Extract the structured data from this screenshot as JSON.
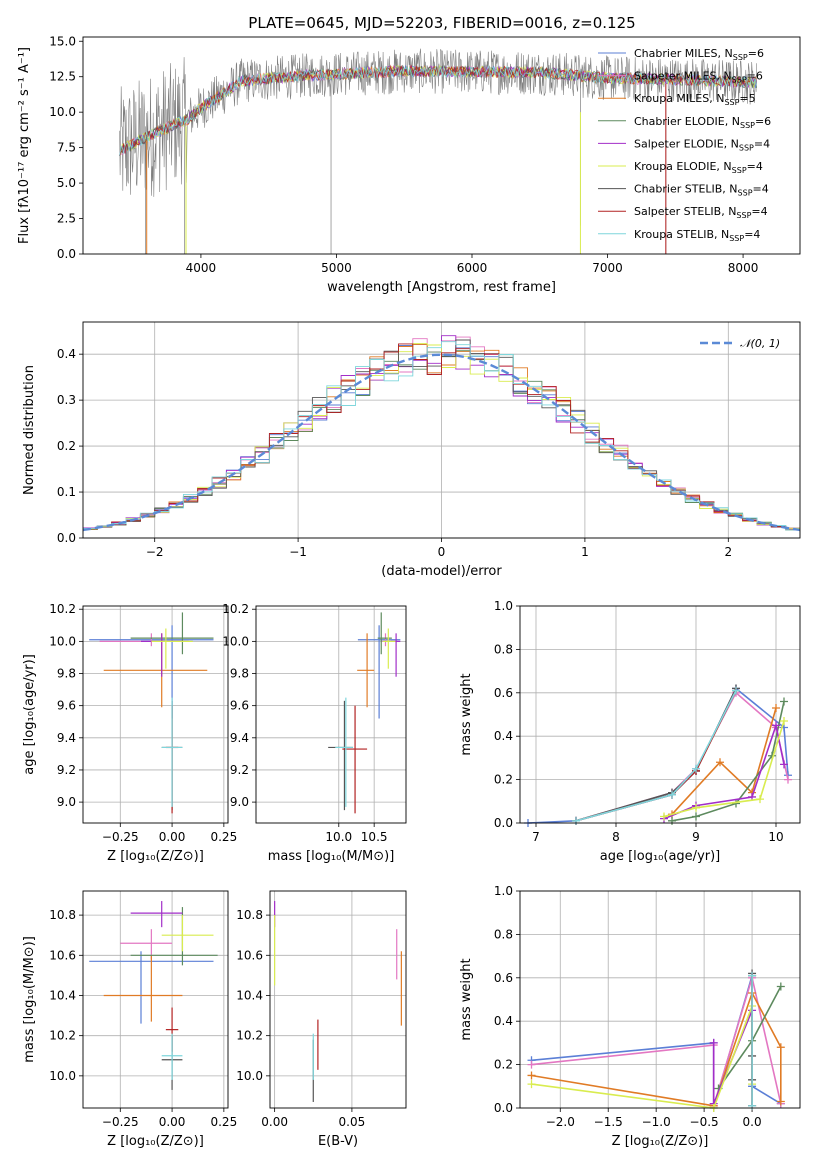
{
  "colors": {
    "chabrier_miles": "#5b7fd6",
    "salpeter_miles": "#e377c2",
    "kroupa_miles": "#e07b25",
    "chabrier_elodie": "#5d8a5e",
    "salpeter_elodie": "#a22ec8",
    "kroupa_elodie": "#d9ec4f",
    "chabrier_stelib": "#555555",
    "salpeter_stelib": "#b22222",
    "kroupa_stelib": "#7fd6dc"
  },
  "chart_data": [
    {
      "id": "spectrum",
      "type": "line",
      "title": "PLATE=0645, MJD=52203, FIBERID=0016, z=0.125",
      "xlabel": "wavelength [Angstrom, rest frame]",
      "ylabel": "Flux [fλ10⁻¹⁷ erg cm⁻² s⁻¹ A⁻¹]",
      "xlim": [
        3130,
        8420
      ],
      "ylim": [
        0,
        15.3
      ],
      "xticks": [
        4000,
        5000,
        6000,
        7000,
        8000
      ],
      "yticks": [
        0.0,
        2.5,
        5.0,
        7.5,
        10.0,
        12.5,
        15.0
      ],
      "legend_position": "top-right",
      "legend": [
        {
          "main": "Chabrier MILES, N",
          "sub": "SSP",
          "tail": "=6"
        },
        {
          "main": "Salpeter MILES, N",
          "sub": "SSP",
          "tail": "=6"
        },
        {
          "main": "Kroupa MILES, N",
          "sub": "SSP",
          "tail": "=5"
        },
        {
          "main": "Chabrier ELODIE, N",
          "sub": "SSP",
          "tail": "=6"
        },
        {
          "main": "Salpeter ELODIE, N",
          "sub": "SSP",
          "tail": "=4"
        },
        {
          "main": "Kroupa ELODIE, N",
          "sub": "SSP",
          "tail": "=4"
        },
        {
          "main": "Chabrier STELIB, N",
          "sub": "SSP",
          "tail": "=4"
        },
        {
          "main": "Salpeter STELIB, N",
          "sub": "SSP",
          "tail": "=4"
        },
        {
          "main": "Kroupa STELIB, N",
          "sub": "SSP",
          "tail": "=4"
        }
      ],
      "approx_continuum": {
        "x": [
          3400,
          3700,
          3900,
          4000,
          4300,
          4800,
          5500,
          6500,
          7000,
          7500,
          8100
        ],
        "y": [
          7.3,
          8.7,
          9.5,
          10.3,
          12.2,
          12.6,
          12.9,
          12.8,
          12.4,
          12.3,
          12.1
        ]
      }
    },
    {
      "id": "residual_hist",
      "type": "line",
      "xlabel": "(data-model)/error",
      "ylabel": "Normed distribution",
      "xlim": [
        -2.5,
        2.5
      ],
      "ylim": [
        0,
        0.47
      ],
      "xticks": [
        -2,
        -1,
        0,
        1,
        2
      ],
      "yticks": [
        0.0,
        0.1,
        0.2,
        0.3,
        0.4
      ],
      "grid": true,
      "legend": "𝒩(0, 1)",
      "legend_position": "top-right",
      "bin_width": 0.1,
      "gaussian": {
        "mean": 0,
        "sigma": 1
      }
    },
    {
      "id": "age_vs_Z",
      "type": "scatter",
      "xlabel": "Z [log₁₀(Z/Z⊙)]",
      "ylabel": "age  [log₁₀(age/yr)]",
      "xlim": [
        -0.43,
        0.27
      ],
      "ylim": [
        8.87,
        10.22
      ],
      "xticks": [
        -0.25,
        0.0,
        0.25
      ],
      "yticks": [
        9.0,
        9.2,
        9.4,
        9.6,
        9.8,
        10.0,
        10.2
      ],
      "grid": true,
      "points": [
        {
          "s": "chabrier_miles",
          "x": 0.0,
          "y": 10.01,
          "xe": [
            -0.4,
            0.2
          ],
          "ye": [
            9.52,
            10.1
          ]
        },
        {
          "s": "salpeter_miles",
          "x": -0.1,
          "y": 10.0,
          "xe": [
            -0.35,
            0.08
          ],
          "ye": [
            9.97,
            10.05
          ]
        },
        {
          "s": "kroupa_miles",
          "x": -0.05,
          "y": 9.82,
          "xe": [
            -0.33,
            0.17
          ],
          "ye": [
            9.59,
            10.05
          ]
        },
        {
          "s": "chabrier_elodie",
          "x": 0.05,
          "y": 10.02,
          "xe": [
            -0.2,
            0.2
          ],
          "ye": [
            9.92,
            10.18
          ]
        },
        {
          "s": "salpeter_elodie",
          "x": -0.05,
          "y": 10.0,
          "xe": [
            -0.15,
            0.05
          ],
          "ye": [
            9.78,
            10.05
          ]
        },
        {
          "s": "kroupa_elodie",
          "x": -0.03,
          "y": 10.0,
          "xe": [
            -0.1,
            0.1
          ],
          "ye": [
            9.83,
            10.08
          ]
        },
        {
          "s": "chabrier_stelib",
          "x": 0.0,
          "y": 9.34,
          "xe": [
            -0.05,
            0.05
          ],
          "ye": [
            8.95,
            9.63
          ]
        },
        {
          "s": "salpeter_stelib",
          "x": 0.0,
          "y": 9.34,
          "xe": [
            -0.03,
            0.03
          ],
          "ye": [
            8.93,
            9.6
          ]
        },
        {
          "s": "kroupa_stelib",
          "x": 0.0,
          "y": 9.34,
          "xe": [
            -0.05,
            0.05
          ],
          "ye": [
            8.97,
            9.65
          ]
        }
      ]
    },
    {
      "id": "age_vs_mass",
      "type": "scatter",
      "xlabel": "mass [log₁₀(M/M⊙)]",
      "ylabel": "",
      "xlim": [
        8.83,
        10.95
      ],
      "ylim": [
        8.87,
        10.22
      ],
      "xticks": [
        10.0,
        10.5
      ],
      "xtick_labels": [
        "10.0",
        "10.5"
      ],
      "yticks": [
        9.0,
        9.2,
        9.4,
        9.6,
        9.8,
        10.0,
        10.2
      ],
      "grid": true,
      "points": [
        {
          "s": "chabrier_miles",
          "x": 10.57,
          "y": 10.01,
          "xe": [
            10.27,
            10.87
          ],
          "ye": [
            9.52,
            10.1
          ]
        },
        {
          "s": "salpeter_miles",
          "x": 10.66,
          "y": 10.0,
          "xe": [
            10.6,
            10.75
          ],
          "ye": [
            9.97,
            10.05
          ]
        },
        {
          "s": "kroupa_miles",
          "x": 10.4,
          "y": 9.82,
          "xe": [
            10.26,
            10.5
          ],
          "ye": [
            9.59,
            10.05
          ]
        },
        {
          "s": "chabrier_elodie",
          "x": 10.6,
          "y": 10.02,
          "xe": [
            10.55,
            10.75
          ],
          "ye": [
            9.92,
            10.18
          ]
        },
        {
          "s": "salpeter_elodie",
          "x": 10.81,
          "y": 10.0,
          "xe": [
            10.74,
            10.87
          ],
          "ye": [
            9.78,
            10.05
          ]
        },
        {
          "s": "kroupa_elodie",
          "x": 10.7,
          "y": 10.0,
          "xe": [
            10.62,
            10.8
          ],
          "ye": [
            9.83,
            10.08
          ]
        },
        {
          "s": "chabrier_stelib",
          "x": 10.08,
          "y": 9.34,
          "xe": [
            9.85,
            10.2
          ],
          "ye": [
            8.95,
            9.63
          ]
        },
        {
          "s": "salpeter_stelib",
          "x": 10.23,
          "y": 9.33,
          "xe": [
            10.05,
            10.4
          ],
          "ye": [
            8.93,
            9.6
          ]
        },
        {
          "s": "kroupa_stelib",
          "x": 10.1,
          "y": 9.34,
          "xe": [
            9.95,
            10.2
          ],
          "ye": [
            8.97,
            9.65
          ]
        }
      ]
    },
    {
      "id": "mass_weight_vs_age",
      "type": "line",
      "xlabel": "age  [log₁₀(age/yr)]",
      "ylabel": "mass weight",
      "xlim": [
        6.8,
        10.3
      ],
      "ylim": [
        0,
        1.0
      ],
      "xticks": [
        7,
        8,
        9,
        10
      ],
      "yticks": [
        0.0,
        0.2,
        0.4,
        0.6,
        0.8,
        1.0
      ],
      "grid": true,
      "series": [
        {
          "s": "chabrier_miles",
          "x": [
            6.9,
            7.5,
            8.7,
            9.0,
            9.5,
            10.1,
            10.15
          ],
          "y": [
            0.0,
            0.01,
            0.13,
            0.24,
            0.62,
            0.44,
            0.22
          ]
        },
        {
          "s": "salpeter_miles",
          "x": [
            7.5,
            8.7,
            9.0,
            9.5,
            10.0,
            10.15
          ],
          "y": [
            0.01,
            0.14,
            0.25,
            0.6,
            0.44,
            0.2
          ]
        },
        {
          "s": "kroupa_miles",
          "x": [
            8.7,
            9.3,
            9.7,
            10.0
          ],
          "y": [
            0.04,
            0.28,
            0.14,
            0.53
          ]
        },
        {
          "s": "chabrier_elodie",
          "x": [
            8.7,
            9.0,
            9.5,
            9.95,
            10.1
          ],
          "y": [
            0.01,
            0.03,
            0.09,
            0.31,
            0.56
          ]
        },
        {
          "s": "salpeter_elodie",
          "x": [
            8.6,
            9.0,
            9.7,
            10.0,
            10.1
          ],
          "y": [
            0.02,
            0.08,
            0.12,
            0.45,
            0.27
          ]
        },
        {
          "s": "kroupa_elodie",
          "x": [
            8.6,
            9.0,
            9.8,
            10.1
          ],
          "y": [
            0.03,
            0.07,
            0.11,
            0.47
          ]
        },
        {
          "s": "chabrier_stelib",
          "x": [
            7.5,
            8.7,
            9.0,
            9.5
          ],
          "y": [
            0.01,
            0.14,
            0.24,
            0.62
          ]
        },
        {
          "s": "salpeter_stelib",
          "x": [
            7.5,
            8.7,
            9.0,
            9.5
          ],
          "y": [
            0.01,
            0.13,
            0.24,
            0.61
          ]
        },
        {
          "s": "kroupa_stelib",
          "x": [
            7.5,
            8.7,
            9.0,
            9.5
          ],
          "y": [
            0.01,
            0.13,
            0.25,
            0.61
          ]
        }
      ]
    },
    {
      "id": "mass_vs_Z",
      "type": "scatter",
      "xlabel": "Z [log₁₀(Z/Z⊙)]",
      "ylabel": "mass [log₁₀(M/M⊙)]",
      "xlim": [
        -0.43,
        0.27
      ],
      "ylim": [
        9.84,
        10.92
      ],
      "xticks": [
        -0.25,
        0.0,
        0.25
      ],
      "yticks": [
        10.0,
        10.2,
        10.4,
        10.6,
        10.8
      ],
      "grid": true,
      "points": [
        {
          "s": "chabrier_miles",
          "x": -0.15,
          "y": 10.57,
          "xe": [
            -0.4,
            0.2
          ],
          "ye": [
            10.26,
            10.62
          ]
        },
        {
          "s": "salpeter_miles",
          "x": -0.1,
          "y": 10.66,
          "xe": [
            -0.25,
            0.0
          ],
          "ye": [
            10.58,
            10.73
          ]
        },
        {
          "s": "kroupa_miles",
          "x": -0.1,
          "y": 10.4,
          "xe": [
            -0.33,
            0.05
          ],
          "ye": [
            10.27,
            10.6
          ]
        },
        {
          "s": "chabrier_elodie",
          "x": 0.05,
          "y": 10.6,
          "xe": [
            -0.2,
            0.22
          ],
          "ye": [
            10.55,
            10.84
          ]
        },
        {
          "s": "salpeter_elodie",
          "x": -0.05,
          "y": 10.81,
          "xe": [
            -0.2,
            0.05
          ],
          "ye": [
            10.74,
            10.87
          ]
        },
        {
          "s": "kroupa_elodie",
          "x": 0.05,
          "y": 10.7,
          "xe": [
            -0.05,
            0.2
          ],
          "ye": [
            10.62,
            10.8
          ]
        },
        {
          "s": "chabrier_stelib",
          "x": 0.0,
          "y": 10.08,
          "xe": [
            -0.05,
            0.05
          ],
          "ye": [
            9.93,
            10.2
          ]
        },
        {
          "s": "salpeter_stelib",
          "x": 0.0,
          "y": 10.23,
          "xe": [
            -0.03,
            0.03
          ],
          "ye": [
            10.12,
            10.34
          ]
        },
        {
          "s": "kroupa_stelib",
          "x": 0.0,
          "y": 10.1,
          "xe": [
            -0.05,
            0.05
          ],
          "ye": [
            9.98,
            10.21
          ]
        }
      ]
    },
    {
      "id": "mass_vs_ebv",
      "type": "scatter",
      "xlabel": "E(B-V)",
      "ylabel": "",
      "xlim": [
        -0.003,
        0.085
      ],
      "ylim": [
        9.84,
        10.92
      ],
      "xticks": [
        0.0,
        0.05
      ],
      "xtick_labels": [
        "0.00",
        "0.05"
      ],
      "yticks": [
        10.0,
        10.2,
        10.4,
        10.6,
        10.8
      ],
      "grid": true,
      "points": [
        {
          "s": "salpeter_elodie",
          "x": 0.0,
          "ye": [
            10.74,
            10.87
          ]
        },
        {
          "s": "kroupa_elodie",
          "x": 0.0,
          "ye": [
            10.45,
            10.8
          ]
        },
        {
          "s": "chabrier_stelib",
          "x": 0.025,
          "ye": [
            9.87,
            10.18
          ]
        },
        {
          "s": "kroupa_stelib",
          "x": 0.025,
          "ye": [
            9.98,
            10.21
          ]
        },
        {
          "s": "salpeter_stelib",
          "x": 0.028,
          "ye": [
            10.03,
            10.28
          ]
        },
        {
          "s": "salpeter_miles",
          "x": 0.079,
          "ye": [
            10.48,
            10.73
          ]
        },
        {
          "s": "kroupa_miles",
          "x": 0.082,
          "ye": [
            10.25,
            10.62
          ]
        }
      ]
    },
    {
      "id": "mass_weight_vs_Z",
      "type": "line",
      "xlabel": "Z [log₁₀(Z/Z⊙)]",
      "ylabel": "mass weight",
      "xlim": [
        -2.42,
        0.5
      ],
      "ylim": [
        0,
        1.0
      ],
      "xticks": [
        -2.0,
        -1.5,
        -1.0,
        -0.5,
        0.0
      ],
      "yticks": [
        0.0,
        0.2,
        0.4,
        0.6,
        0.8,
        1.0
      ],
      "grid": true,
      "series": [
        {
          "s": "chabrier_miles",
          "x": [
            -2.3,
            -0.4,
            -0.4,
            0.0,
            0.0,
            0.3
          ],
          "y": [
            0.22,
            0.3,
            0.0,
            0.61,
            0.1,
            0.02
          ]
        },
        {
          "s": "salpeter_miles",
          "x": [
            -2.3,
            -0.4,
            -0.4,
            0.0,
            0.3
          ],
          "y": [
            0.2,
            0.29,
            0.01,
            0.6,
            0.02
          ]
        },
        {
          "s": "kroupa_miles",
          "x": [
            -2.3,
            -0.4,
            0.0,
            0.3,
            0.3
          ],
          "y": [
            0.15,
            0.01,
            0.53,
            0.28,
            0.03
          ]
        },
        {
          "s": "chabrier_elodie",
          "x": [
            -0.35,
            0.0,
            0.3
          ],
          "y": [
            0.09,
            0.31,
            0.56
          ]
        },
        {
          "s": "salpeter_elodie",
          "x": [
            -0.4,
            -0.4,
            0.0
          ],
          "y": [
            0.3,
            0.02,
            0.45
          ]
        },
        {
          "s": "kroupa_elodie",
          "x": [
            -2.3,
            -0.4,
            0.0,
            0.0
          ],
          "y": [
            0.11,
            0.0,
            0.47,
            0.11
          ]
        },
        {
          "s": "chabrier_stelib",
          "x": [
            0.0,
            0.0,
            0.0,
            0.0
          ],
          "y": [
            0.62,
            0.24,
            0.13,
            0.01
          ]
        },
        {
          "s": "salpeter_stelib",
          "x": [
            0.0,
            0.0
          ],
          "y": [
            0.61,
            0.01
          ]
        },
        {
          "s": "kroupa_stelib",
          "x": [
            0.0,
            0.0
          ],
          "y": [
            0.61,
            0.01
          ]
        }
      ]
    }
  ]
}
